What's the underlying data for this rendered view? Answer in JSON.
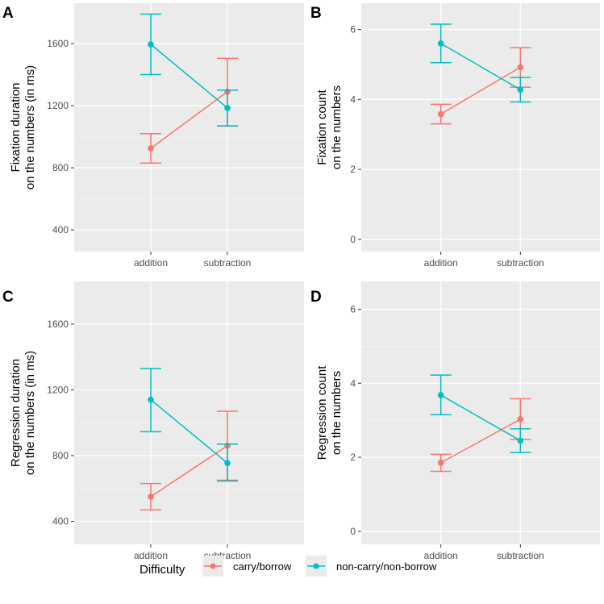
{
  "colors": {
    "carry": "#F8766D",
    "noncarry": "#00BFC4",
    "panel_bg": "#EBEBEB",
    "grid_major": "#FFFFFF"
  },
  "legend": {
    "title": "Difficulty",
    "entries": [
      {
        "key": "carry",
        "label": "carry/borrow"
      },
      {
        "key": "noncarry",
        "label": "non-carry/non-borrow"
      }
    ]
  },
  "chart_data": [
    {
      "id": "A",
      "type": "line",
      "title": "A",
      "ylabel": [
        "Fixation duration",
        "on the numbers (in ms)"
      ],
      "categories": [
        "addition",
        "subtraction"
      ],
      "ylim": [
        260,
        1860
      ],
      "yticks": [
        400,
        800,
        1200,
        1600
      ],
      "series": [
        {
          "key": "carry",
          "name": "carry/borrow",
          "values": [
            925,
            1290
          ],
          "err_low": [
            830,
            1070
          ],
          "err_high": [
            1020,
            1505
          ]
        },
        {
          "key": "noncarry",
          "name": "non-carry/non-borrow",
          "values": [
            1595,
            1185
          ],
          "err_low": [
            1400,
            1070
          ],
          "err_high": [
            1790,
            1300
          ]
        }
      ]
    },
    {
      "id": "B",
      "type": "line",
      "title": "B",
      "ylabel": [
        "Fixation count",
        "on the numbers"
      ],
      "categories": [
        "addition",
        "subtraction"
      ],
      "ylim": [
        -0.35,
        6.75
      ],
      "yticks": [
        0,
        2,
        4,
        6
      ],
      "series": [
        {
          "key": "carry",
          "name": "carry/borrow",
          "values": [
            3.58,
            4.92
          ],
          "err_low": [
            3.3,
            4.35
          ],
          "err_high": [
            3.86,
            5.48
          ]
        },
        {
          "key": "noncarry",
          "name": "non-carry/non-borrow",
          "values": [
            5.6,
            4.28
          ],
          "err_low": [
            5.05,
            3.93
          ],
          "err_high": [
            6.15,
            4.63
          ]
        }
      ]
    },
    {
      "id": "C",
      "type": "line",
      "title": "C",
      "ylabel": [
        "Regression duration",
        "on the numbers (in ms)"
      ],
      "categories": [
        "addition",
        "subtraction"
      ],
      "ylim": [
        260,
        1860
      ],
      "yticks": [
        400,
        800,
        1200,
        1600
      ],
      "series": [
        {
          "key": "carry",
          "name": "carry/borrow",
          "values": [
            550,
            860
          ],
          "err_low": [
            470,
            650
          ],
          "err_high": [
            630,
            1070
          ]
        },
        {
          "key": "noncarry",
          "name": "non-carry/non-borrow",
          "values": [
            1140,
            755
          ],
          "err_low": [
            945,
            645
          ],
          "err_high": [
            1330,
            870
          ]
        }
      ]
    },
    {
      "id": "D",
      "type": "line",
      "title": "D",
      "ylabel": [
        "Regression count",
        "on the numbers"
      ],
      "categories": [
        "addition",
        "subtraction"
      ],
      "ylim": [
        -0.35,
        6.75
      ],
      "yticks": [
        0,
        2,
        4,
        6
      ],
      "series": [
        {
          "key": "carry",
          "name": "carry/borrow",
          "values": [
            1.85,
            3.03
          ],
          "err_low": [
            1.62,
            2.48
          ],
          "err_high": [
            2.08,
            3.58
          ]
        },
        {
          "key": "noncarry",
          "name": "non-carry/non-borrow",
          "values": [
            3.68,
            2.45
          ],
          "err_low": [
            3.15,
            2.13
          ],
          "err_high": [
            4.22,
            2.77
          ]
        }
      ]
    }
  ]
}
